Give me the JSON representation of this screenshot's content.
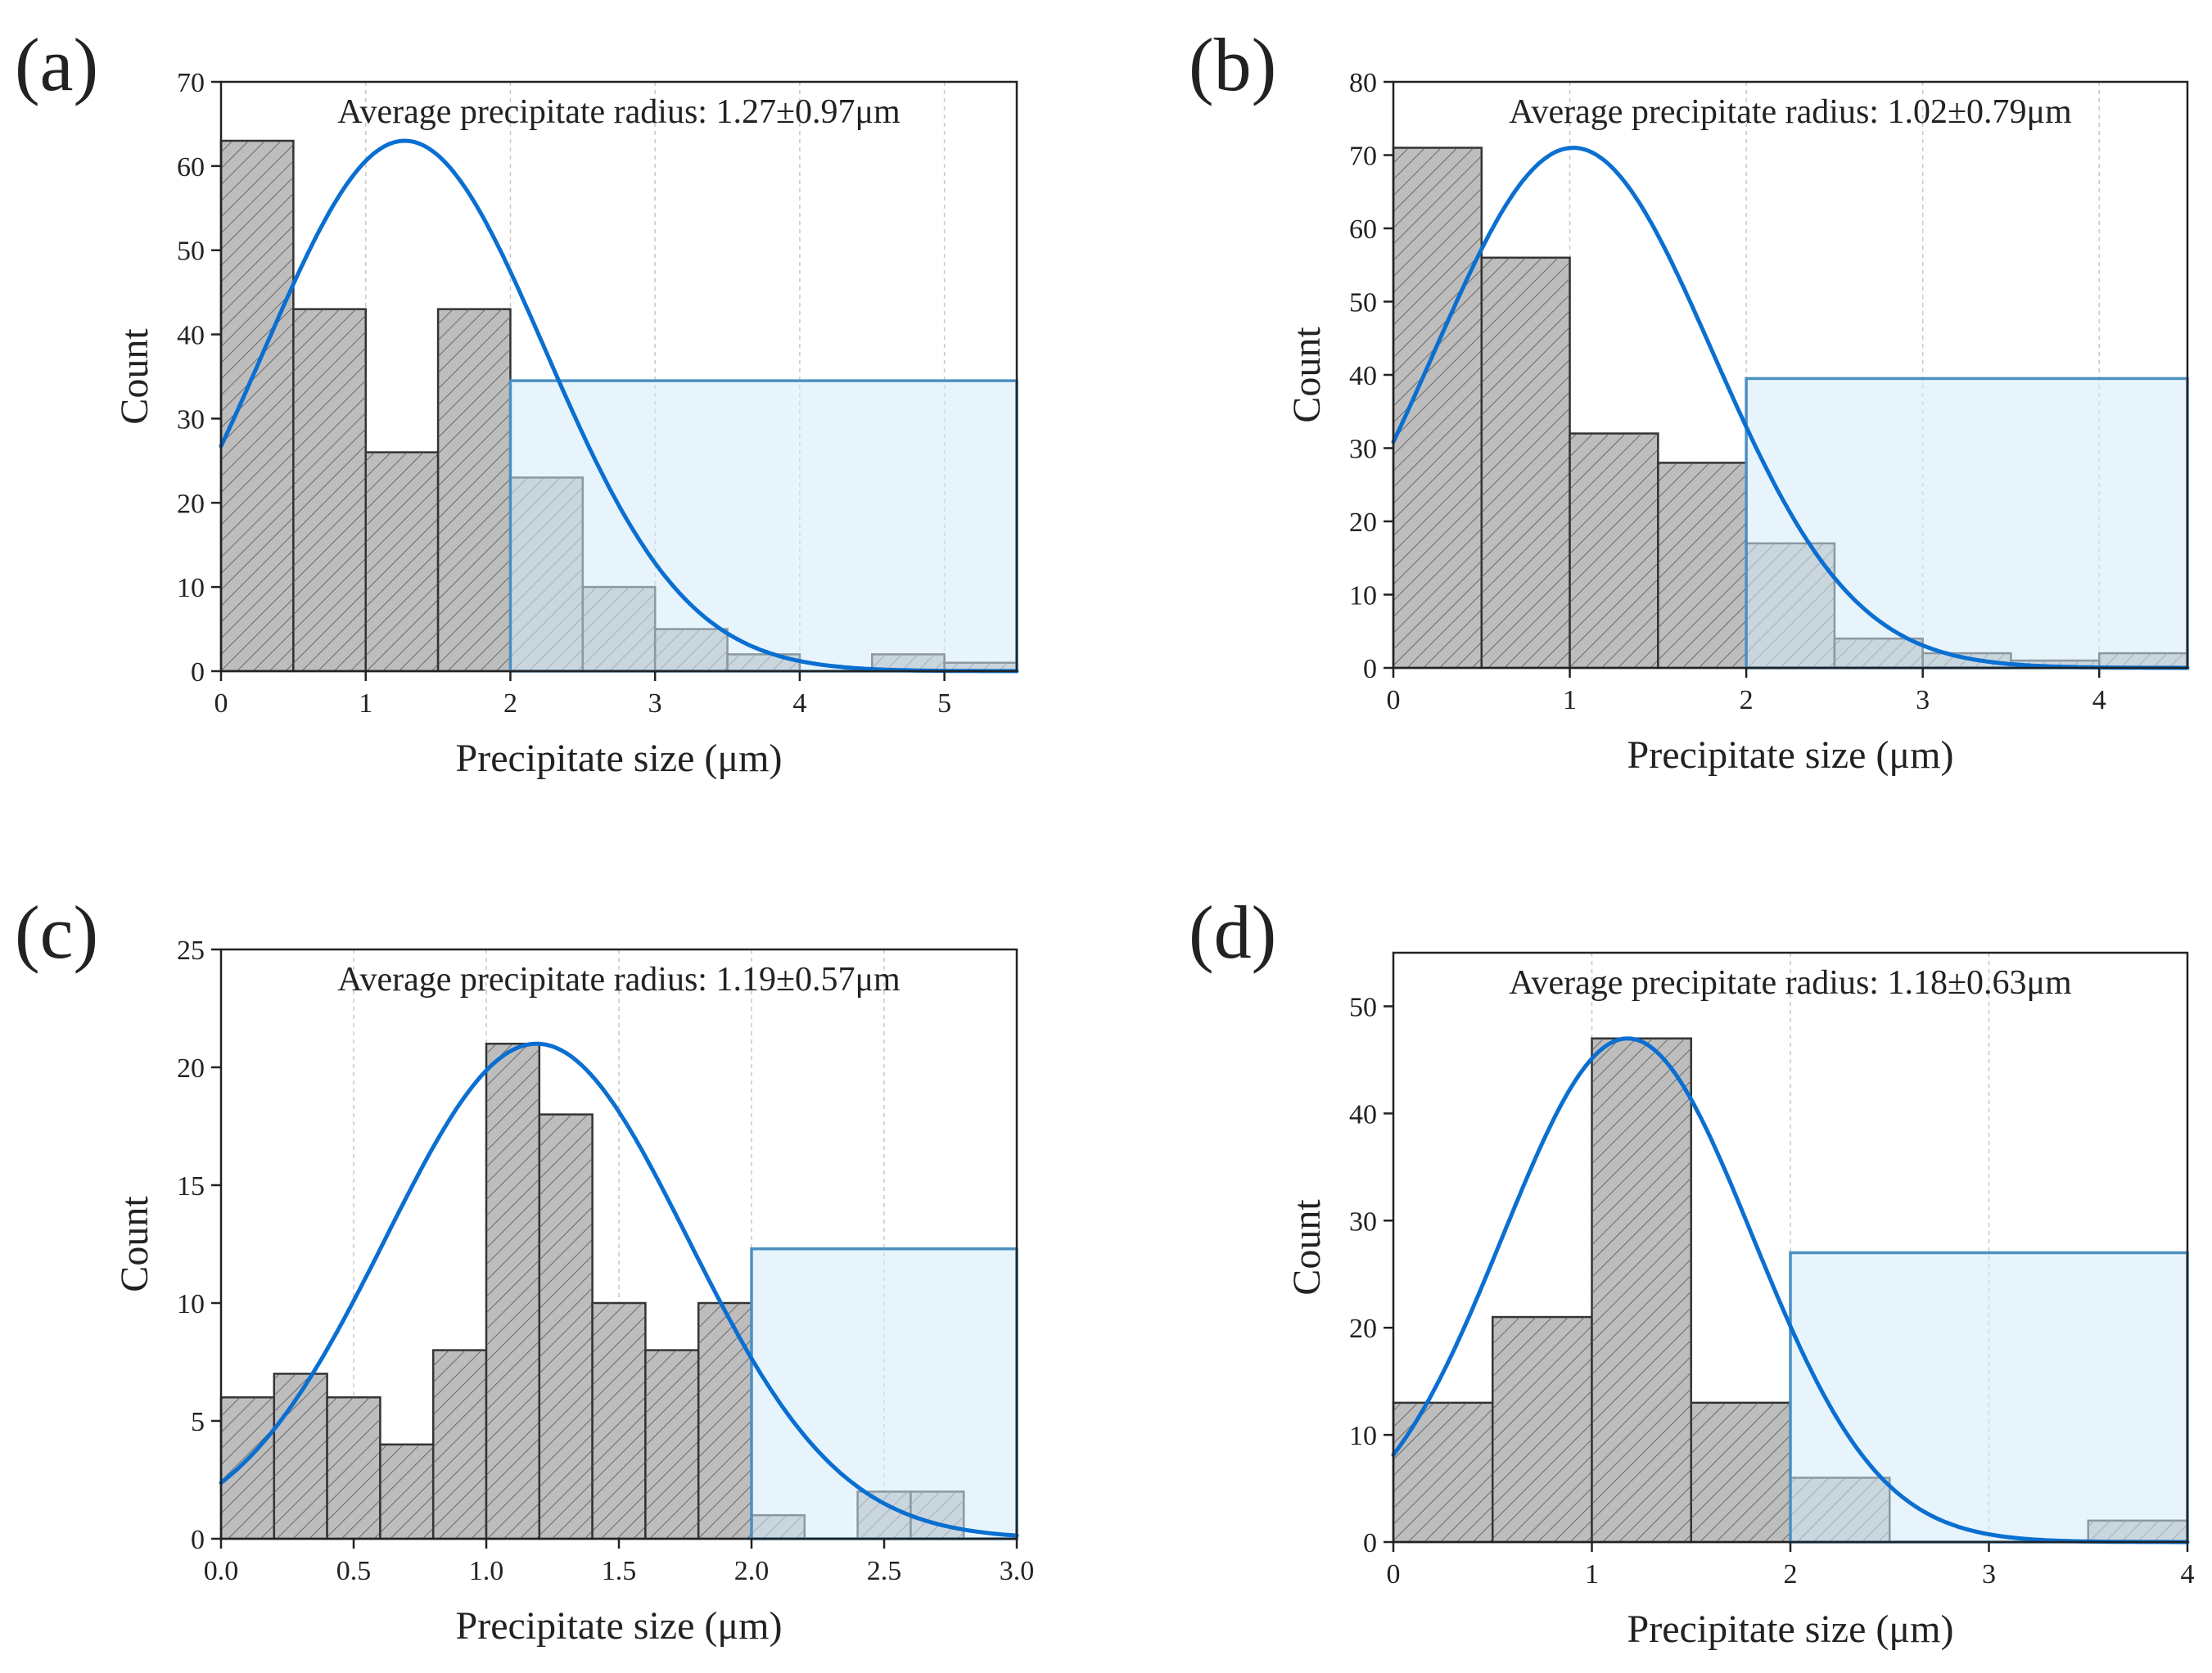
{
  "colors": {
    "bar_fill": "#bdbdbd",
    "bar_edge": "#333333",
    "fit_curve": "#0a6fd1",
    "highlight_fill": "#d6ebf9",
    "highlight_edge": "#4a90c2"
  },
  "chart_data": [
    {
      "panel": "(a)",
      "type": "bar",
      "annotation": "Average precipitate radius: 1.27±0.97μm",
      "xlabel": "Precipitate size (μm)",
      "ylabel": "Count",
      "xlim": [
        0,
        5.5
      ],
      "ylim": [
        0,
        70
      ],
      "xticks": [
        0,
        1,
        2,
        3,
        4,
        5
      ],
      "xtick_labels": [
        "0",
        "1",
        "2",
        "3",
        "4",
        "5"
      ],
      "yticks": [
        0,
        10,
        20,
        30,
        40,
        50,
        60,
        70
      ],
      "ytick_labels": [
        "0",
        "10",
        "20",
        "30",
        "40",
        "50",
        "60",
        "70"
      ],
      "grid": "vertical",
      "bin_width": 0.5,
      "bins": [
        0,
        0.5,
        1.0,
        1.5,
        2.0,
        2.5,
        3.0,
        3.5,
        4.0,
        4.5,
        5.0
      ],
      "values": [
        63,
        43,
        26,
        43,
        23,
        10,
        5,
        2,
        0,
        2,
        1
      ],
      "fit": {
        "type": "gaussian",
        "mean": 1.27,
        "sd": 0.97,
        "peak": 63
      },
      "highlight_region": {
        "x": [
          2,
          5.5
        ],
        "y": [
          0,
          34.5
        ]
      }
    },
    {
      "panel": "(b)",
      "type": "bar",
      "annotation": "Average precipitate radius: 1.02±0.79μm",
      "xlabel": "Precipitate size (μm)",
      "ylabel": "Count",
      "xlim": [
        0,
        4.5
      ],
      "ylim": [
        0,
        80
      ],
      "xticks": [
        0,
        1,
        2,
        3,
        4
      ],
      "xtick_labels": [
        "0",
        "1",
        "2",
        "3",
        "4"
      ],
      "yticks": [
        0,
        10,
        20,
        30,
        40,
        50,
        60,
        70,
        80
      ],
      "ytick_labels": [
        "0",
        "10",
        "20",
        "30",
        "40",
        "50",
        "60",
        "70",
        "80"
      ],
      "grid": "vertical",
      "bin_width": 0.5,
      "bins": [
        0,
        0.5,
        1.0,
        1.5,
        2.0,
        2.5,
        3.0,
        3.5,
        4.0
      ],
      "values": [
        71,
        56,
        32,
        28,
        17,
        4,
        2,
        1,
        2
      ],
      "fit": {
        "type": "gaussian",
        "mean": 1.02,
        "sd": 0.79,
        "peak": 71
      },
      "highlight_region": {
        "x": [
          2,
          4.5
        ],
        "y": [
          0,
          39.5
        ]
      }
    },
    {
      "panel": "(c)",
      "type": "bar",
      "annotation": "Average precipitate radius: 1.19±0.57μm",
      "xlabel": "Precipitate size (μm)",
      "ylabel": "Count",
      "xlim": [
        0,
        3.0
      ],
      "ylim": [
        0,
        25
      ],
      "xticks": [
        0,
        0.5,
        1.0,
        1.5,
        2.0,
        2.5,
        3.0
      ],
      "xtick_labels": [
        "0.0",
        "0.5",
        "1.0",
        "1.5",
        "2.0",
        "2.5",
        "3.0"
      ],
      "yticks": [
        0,
        5,
        10,
        15,
        20,
        25
      ],
      "ytick_labels": [
        "0",
        "5",
        "10",
        "15",
        "20",
        "25"
      ],
      "grid": "vertical",
      "bin_width": 0.2,
      "bins": [
        0,
        0.2,
        0.4,
        0.6,
        0.8,
        1.0,
        1.2,
        1.4,
        1.6,
        1.8,
        2.0,
        2.2,
        2.4,
        2.6
      ],
      "values": [
        6,
        7,
        6,
        4,
        8,
        21,
        18,
        10,
        8,
        10,
        1,
        0,
        2,
        2
      ],
      "fit": {
        "type": "gaussian",
        "mean": 1.19,
        "sd": 0.57,
        "peak": 21
      },
      "highlight_region": {
        "x": [
          2,
          3.0
        ],
        "y": [
          0,
          12.3
        ]
      }
    },
    {
      "panel": "(d)",
      "type": "bar",
      "annotation": "Average precipitate radius: 1.18±0.63μm",
      "xlabel": "Precipitate size (μm)",
      "ylabel": "Count",
      "xlim": [
        0,
        4
      ],
      "ylim": [
        0,
        55
      ],
      "xticks": [
        0,
        1,
        2,
        3,
        4
      ],
      "xtick_labels": [
        "0",
        "1",
        "2",
        "3",
        "4"
      ],
      "yticks": [
        0,
        10,
        20,
        30,
        40,
        50
      ],
      "ytick_labels": [
        "0",
        "10",
        "20",
        "30",
        "40",
        "50"
      ],
      "grid": "vertical",
      "bin_width": 0.5,
      "bins": [
        0,
        0.5,
        1.0,
        1.5,
        2.0,
        2.5,
        3.0,
        3.5
      ],
      "values": [
        13,
        21,
        47,
        13,
        6,
        0,
        0,
        2
      ],
      "fit": {
        "type": "gaussian",
        "mean": 1.18,
        "sd": 0.63,
        "peak": 47
      },
      "highlight_region": {
        "x": [
          2,
          4
        ],
        "y": [
          0,
          27
        ]
      }
    }
  ]
}
